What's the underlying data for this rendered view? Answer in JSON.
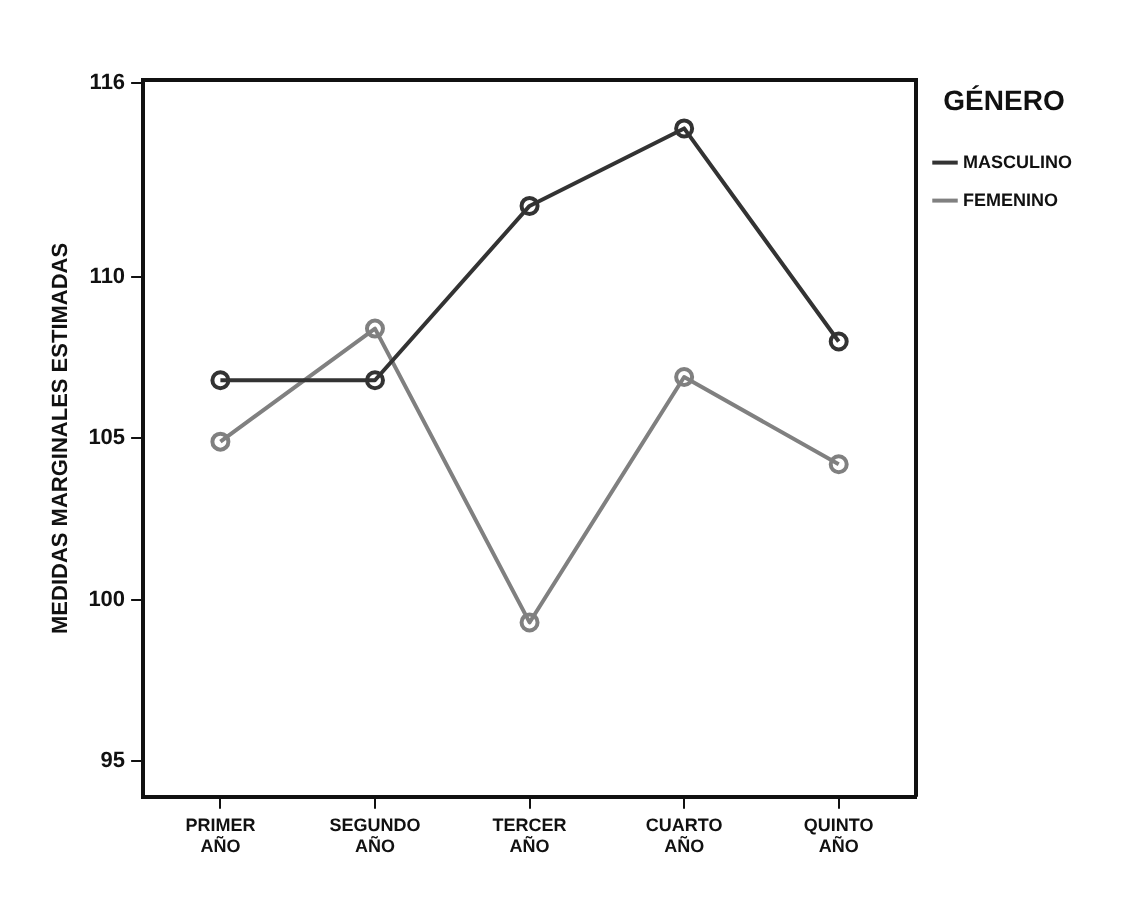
{
  "chart_data": {
    "type": "line",
    "ylabel": "MEDIDAS MARGINALES ESTIMADAS",
    "legend_title": "GÉNERO",
    "categories": [
      "PRIMER AÑO",
      "SEGUNDO AÑO",
      "TERCER AÑO",
      "CUARTO AÑO",
      "QUINTO AÑO"
    ],
    "series": [
      {
        "name": "MASCULINO",
        "color": "#333333",
        "values": [
          106.8,
          106.8,
          112.2,
          114.6,
          108.0
        ]
      },
      {
        "name": "FEMENINO",
        "color": "#808080",
        "values": [
          104.9,
          108.4,
          99.3,
          106.9,
          104.2
        ]
      }
    ],
    "ylim": [
      93.9,
      116.1
    ],
    "yticks": [
      95,
      100,
      105,
      110,
      116
    ],
    "grid": false,
    "legend": "top right",
    "marker": "circle",
    "line_style": "solid"
  }
}
